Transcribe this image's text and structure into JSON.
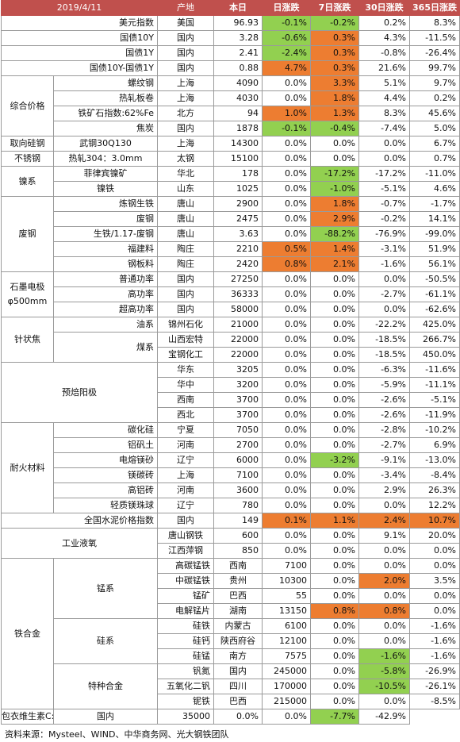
{
  "colors": {
    "header_bg": "#c0504d",
    "down_green": "#92d050",
    "up_orange": "#ed7d31"
  },
  "header": {
    "date": "2019/4/11",
    "origin": "产地",
    "this_week": "本日",
    "d1": "日涨跌",
    "d7": "7日涨跌",
    "d30": "30日涨跌",
    "d365": "365日涨跌"
  },
  "rows": [
    {
      "cat": "",
      "sub": "美元指数",
      "origin": "美国",
      "price": "96.93",
      "d1": "-0.1%",
      "d7": "-0.2%",
      "d30": "0.2%",
      "d365": "8.3%",
      "h1": "g",
      "h7": "g",
      "h30": "",
      "h365": ""
    },
    {
      "cat": "",
      "sub": "国债10Y",
      "origin": "国内",
      "price": "3.28",
      "d1": "-0.6%",
      "d7": "0.3%",
      "d30": "4.3%",
      "d365": "-11.5%",
      "h1": "g",
      "h7": "o",
      "h30": "",
      "h365": ""
    },
    {
      "cat": "",
      "sub": "国债1Y",
      "origin": "国内",
      "price": "2.41",
      "d1": "-2.4%",
      "d7": "0.3%",
      "d30": "-0.8%",
      "d365": "-26.4%",
      "h1": "g",
      "h7": "o",
      "h30": "",
      "h365": ""
    },
    {
      "cat": "",
      "sub": "国债10Y-国债1Y",
      "origin": "国内",
      "price": "0.88",
      "d1": "4.7%",
      "d7": "0.3%",
      "d30": "21.6%",
      "d365": "99.7%",
      "h1": "o",
      "h7": "o",
      "h30": "",
      "h365": ""
    },
    {
      "cat": "综合价格",
      "sub": "螺纹钢",
      "origin": "上海",
      "price": "4090",
      "d1": "0.0%",
      "d7": "3.3%",
      "d30": "5.1%",
      "d365": "9.7%",
      "h1": "",
      "h7": "o",
      "h30": "",
      "h365": ""
    },
    {
      "cat": "",
      "sub": "热轧板卷",
      "origin": "上海",
      "price": "4030",
      "d1": "0.0%",
      "d7": "1.8%",
      "d30": "4.4%",
      "d365": "0.2%",
      "h1": "",
      "h7": "o",
      "h30": "",
      "h365": ""
    },
    {
      "cat": "",
      "sub": "铁矿石指数:62%Fe",
      "origin": "北方",
      "price": "94",
      "d1": "1.0%",
      "d7": "1.3%",
      "d30": "8.3%",
      "d365": "45.6%",
      "h1": "o",
      "h7": "o",
      "h30": "",
      "h365": ""
    },
    {
      "cat": "",
      "sub": "焦炭",
      "origin": "国内",
      "price": "1878",
      "d1": "-0.1%",
      "d7": "-0.4%",
      "d30": "-7.4%",
      "d365": "5.0%",
      "h1": "g",
      "h7": "g",
      "h30": "",
      "h365": ""
    },
    {
      "cat": "取向硅钢",
      "sub": "武钢30Q130",
      "origin": "上海",
      "price": "14300",
      "d1": "0.0%",
      "d7": "0.0%",
      "d30": "0.0%",
      "d365": "6.7%",
      "h1": "",
      "h7": "",
      "h30": "",
      "h365": ""
    },
    {
      "cat": "不锈钢",
      "sub": "热轧304：3.0mm",
      "origin": "太钢",
      "price": "15100",
      "d1": "0.0%",
      "d7": "0.0%",
      "d30": "0.0%",
      "d365": "0.7%",
      "h1": "",
      "h7": "",
      "h30": "",
      "h365": ""
    },
    {
      "cat": "镍系",
      "sub": "菲律宾镍矿",
      "origin": "华北",
      "price": "178",
      "d1": "0.0%",
      "d7": "-17.2%",
      "d30": "-17.2%",
      "d365": "-11.0%",
      "h1": "",
      "h7": "g",
      "h30": "",
      "h365": ""
    },
    {
      "cat": "",
      "sub": "镍铁",
      "origin": "山东",
      "price": "1025",
      "d1": "0.0%",
      "d7": "-1.0%",
      "d30": "-5.1%",
      "d365": "4.6%",
      "h1": "",
      "h7": "g",
      "h30": "",
      "h365": ""
    },
    {
      "cat": "废钢",
      "sub": "炼钢生铁",
      "origin": "唐山",
      "price": "2900",
      "d1": "0.0%",
      "d7": "1.8%",
      "d30": "-0.7%",
      "d365": "-1.7%",
      "h1": "",
      "h7": "o",
      "h30": "",
      "h365": ""
    },
    {
      "cat": "",
      "sub": "废钢",
      "origin": "唐山",
      "price": "2475",
      "d1": "0.0%",
      "d7": "2.9%",
      "d30": "-0.2%",
      "d365": "14.1%",
      "h1": "",
      "h7": "o",
      "h30": "",
      "h365": ""
    },
    {
      "cat": "",
      "sub": "生铁/1.17-废钢",
      "origin": "唐山",
      "price": "3.63",
      "d1": "0.0%",
      "d7": "-88.2%",
      "d30": "-76.9%",
      "d365": "-99.0%",
      "h1": "",
      "h7": "g",
      "h30": "",
      "h365": ""
    },
    {
      "cat": "",
      "sub": "福建料",
      "origin": "陶庄",
      "price": "2210",
      "d1": "0.5%",
      "d7": "1.4%",
      "d30": "-3.1%",
      "d365": "51.9%",
      "h1": "o",
      "h7": "o",
      "h30": "",
      "h365": ""
    },
    {
      "cat": "",
      "sub": "钢板料",
      "origin": "陶庄",
      "price": "2420",
      "d1": "0.8%",
      "d7": "2.1%",
      "d30": "-1.6%",
      "d365": "56.1%",
      "h1": "o",
      "h7": "o",
      "h30": "",
      "h365": ""
    },
    {
      "cat": "石墨电极φ500mm",
      "sub": "普通功率",
      "origin": "国内",
      "price": "27250",
      "d1": "0.0%",
      "d7": "0.0%",
      "d30": "0.0%",
      "d365": "-50.5%",
      "h1": "",
      "h7": "",
      "h30": "",
      "h365": ""
    },
    {
      "cat": "",
      "sub": "高功率",
      "origin": "国内",
      "price": "36333",
      "d1": "0.0%",
      "d7": "0.0%",
      "d30": "-2.7%",
      "d365": "-61.1%",
      "h1": "",
      "h7": "",
      "h30": "",
      "h365": ""
    },
    {
      "cat": "",
      "sub": "超高功率",
      "origin": "国内",
      "price": "58000",
      "d1": "0.0%",
      "d7": "0.0%",
      "d30": "0.0%",
      "d365": "-62.6%",
      "h1": "",
      "h7": "",
      "h30": "",
      "h365": ""
    },
    {
      "cat": "针状焦",
      "sub": "油系",
      "origin": "锦州石化",
      "price": "21000",
      "d1": "0.0%",
      "d7": "0.0%",
      "d30": "-22.2%",
      "d365": "425.0%",
      "h1": "",
      "h7": "",
      "h30": "",
      "h365": ""
    },
    {
      "cat": "",
      "sub": "煤系",
      "origin": "山西宏特",
      "price": "22000",
      "d1": "0.0%",
      "d7": "0.0%",
      "d30": "-18.5%",
      "d365": "266.7%",
      "h1": "",
      "h7": "",
      "h30": "",
      "h365": ""
    },
    {
      "cat": "",
      "sub": "",
      "origin": "宝钢化工",
      "price": "22000",
      "d1": "0.0%",
      "d7": "0.0%",
      "d30": "-18.5%",
      "d365": "450.0%",
      "h1": "",
      "h7": "",
      "h30": "",
      "h365": ""
    },
    {
      "cat": "预焙阳极",
      "sub": "华东",
      "origin": "",
      "price": "3205",
      "d1": "0.0%",
      "d7": "0.0%",
      "d30": "-6.3%",
      "d365": "-11.6%",
      "h1": "",
      "h7": "",
      "h30": "",
      "h365": ""
    },
    {
      "cat": "",
      "sub": "华中",
      "origin": "",
      "price": "3200",
      "d1": "0.0%",
      "d7": "0.0%",
      "d30": "-5.9%",
      "d365": "-11.1%",
      "h1": "",
      "h7": "",
      "h30": "",
      "h365": ""
    },
    {
      "cat": "",
      "sub": "西南",
      "origin": "",
      "price": "3700",
      "d1": "0.0%",
      "d7": "0.0%",
      "d30": "-2.6%",
      "d365": "-5.1%",
      "h1": "",
      "h7": "",
      "h30": "",
      "h365": ""
    },
    {
      "cat": "",
      "sub": "西北",
      "origin": "",
      "price": "3700",
      "d1": "0.0%",
      "d7": "0.0%",
      "d30": "-2.6%",
      "d365": "-11.9%",
      "h1": "",
      "h7": "",
      "h30": "",
      "h365": ""
    },
    {
      "cat": "耐火材料",
      "sub": "碳化硅",
      "origin": "宁夏",
      "price": "7050",
      "d1": "0.0%",
      "d7": "0.0%",
      "d30": "-2.8%",
      "d365": "-10.2%",
      "h1": "",
      "h7": "",
      "h30": "",
      "h365": ""
    },
    {
      "cat": "",
      "sub": "铝矾土",
      "origin": "河南",
      "price": "2700",
      "d1": "0.0%",
      "d7": "0.0%",
      "d30": "-2.7%",
      "d365": "6.9%",
      "h1": "",
      "h7": "",
      "h30": "",
      "h365": ""
    },
    {
      "cat": "",
      "sub": "电熔镁砂",
      "origin": "辽宁",
      "price": "6000",
      "d1": "0.0%",
      "d7": "-3.2%",
      "d30": "-9.1%",
      "d365": "-13.0%",
      "h1": "",
      "h7": "g",
      "h30": "",
      "h365": ""
    },
    {
      "cat": "",
      "sub": "镁碳砖",
      "origin": "上海",
      "price": "7100",
      "d1": "0.0%",
      "d7": "0.0%",
      "d30": "-3.4%",
      "d365": "-8.4%",
      "h1": "",
      "h7": "",
      "h30": "",
      "h365": ""
    },
    {
      "cat": "",
      "sub": "高铝砖",
      "origin": "河南",
      "price": "3600",
      "d1": "0.0%",
      "d7": "0.0%",
      "d30": "2.9%",
      "d365": "26.3%",
      "h1": "",
      "h7": "",
      "h30": "",
      "h365": ""
    },
    {
      "cat": "",
      "sub": "轻质镁珠球",
      "origin": "辽宁",
      "price": "780",
      "d1": "0.0%",
      "d7": "0.0%",
      "d30": "0.0%",
      "d365": "12.2%",
      "h1": "",
      "h7": "",
      "h30": "",
      "h365": ""
    },
    {
      "cat": "",
      "sub": "全国水泥价格指数",
      "origin": "国内",
      "price": "149",
      "d1": "0.1%",
      "d7": "1.1%",
      "d30": "2.4%",
      "d365": "10.7%",
      "h1": "o",
      "h7": "o",
      "h30": "o",
      "h365": "o"
    },
    {
      "cat": "工业液氧",
      "sub": "",
      "origin": "唐山钢铁",
      "price": "600",
      "d1": "0.0%",
      "d7": "0.0%",
      "d30": "9.1%",
      "d365": "20.0%",
      "h1": "",
      "h7": "",
      "h30": "",
      "h365": ""
    },
    {
      "cat": "",
      "sub": "",
      "origin": "江西萍钢",
      "price": "850",
      "d1": "0.0%",
      "d7": "0.0%",
      "d30": "0.0%",
      "d365": "0.0%",
      "h1": "",
      "h7": "",
      "h30": "",
      "h365": ""
    },
    {
      "cat": "锰系",
      "sub": "高碳锰铁",
      "origin": "西南",
      "price": "7100",
      "d1": "0.0%",
      "d7": "0.0%",
      "d30": "0.0%",
      "d365": "-10.1%",
      "h1": "",
      "h7": "",
      "h30": "",
      "h365": ""
    },
    {
      "cat": "",
      "sub": "中碳锰铁",
      "origin": "贵州",
      "price": "10300",
      "d1": "0.0%",
      "d7": "2.0%",
      "d30": "3.5%",
      "d365": "6.2%",
      "h1": "",
      "h7": "o",
      "h30": "",
      "h365": ""
    },
    {
      "cat": "",
      "sub": "锰矿",
      "origin": "巴西",
      "price": "55",
      "d1": "0.0%",
      "d7": "0.0%",
      "d30": "0.0%",
      "d365": "-9.8%",
      "h1": "",
      "h7": "",
      "h30": "",
      "h365": ""
    },
    {
      "cat": "",
      "sub": "电解锰片",
      "origin": "湖南",
      "price": "13150",
      "d1": "0.8%",
      "d7": "0.8%",
      "d30": "0.0%",
      "d365": "14.3%",
      "h1": "o",
      "h7": "o",
      "h30": "",
      "h365": ""
    },
    {
      "cat": "硅系",
      "sub": "硅铁",
      "origin": "内蒙古",
      "price": "6100",
      "d1": "0.0%",
      "d7": "0.0%",
      "d30": "-1.6%",
      "d365": "1.7%",
      "h1": "",
      "h7": "",
      "h30": "",
      "h365": ""
    },
    {
      "cat": "",
      "sub": "硅钙",
      "origin": "陕西府谷",
      "price": "12100",
      "d1": "0.0%",
      "d7": "0.0%",
      "d30": "-1.6%",
      "d365": "30.1%",
      "h1": "",
      "h7": "",
      "h30": "",
      "h365": ""
    },
    {
      "cat": "",
      "sub": "硅锰",
      "origin": "南方",
      "price": "7575",
      "d1": "0.0%",
      "d7": "-1.6%",
      "d30": "-1.6%",
      "d365": "-5.6%",
      "h1": "",
      "h7": "g",
      "h30": "",
      "h365": ""
    },
    {
      "cat": "特种合金",
      "sub": "钒氮",
      "origin": "国内",
      "price": "245000",
      "d1": "0.0%",
      "d7": "-5.8%",
      "d30": "-26.9%",
      "d365": "-17.8%",
      "h1": "",
      "h7": "g",
      "h30": "",
      "h365": ""
    },
    {
      "cat": "",
      "sub": "五氧化二钒",
      "origin": "四川",
      "price": "170000",
      "d1": "0.0%",
      "d7": "-10.5%",
      "d30": "-26.1%",
      "d365": "-6.6%",
      "h1": "",
      "h7": "g",
      "h30": "",
      "h365": ""
    },
    {
      "cat": "",
      "sub": "铌铁",
      "origin": "巴西",
      "price": "215000",
      "d1": "0.0%",
      "d7": "0.0%",
      "d30": "-8.5%",
      "d365": "0.9%",
      "h1": "",
      "h7": "",
      "h30": "",
      "h365": ""
    },
    {
      "cat": "其他",
      "sub": "包衣维生素C:97%",
      "origin": "国内",
      "price": "35000",
      "d1": "0.0%",
      "d7": "0.0%",
      "d30": "-7.7%",
      "d365": "-42.9%",
      "h1": "",
      "h7": "",
      "h30": "g",
      "h365": ""
    }
  ],
  "group_labels": {
    "ferroalloy": "铁合金"
  },
  "source": "资料来源：Mysteel、WIND、中华商务网、光大钢铁团队"
}
